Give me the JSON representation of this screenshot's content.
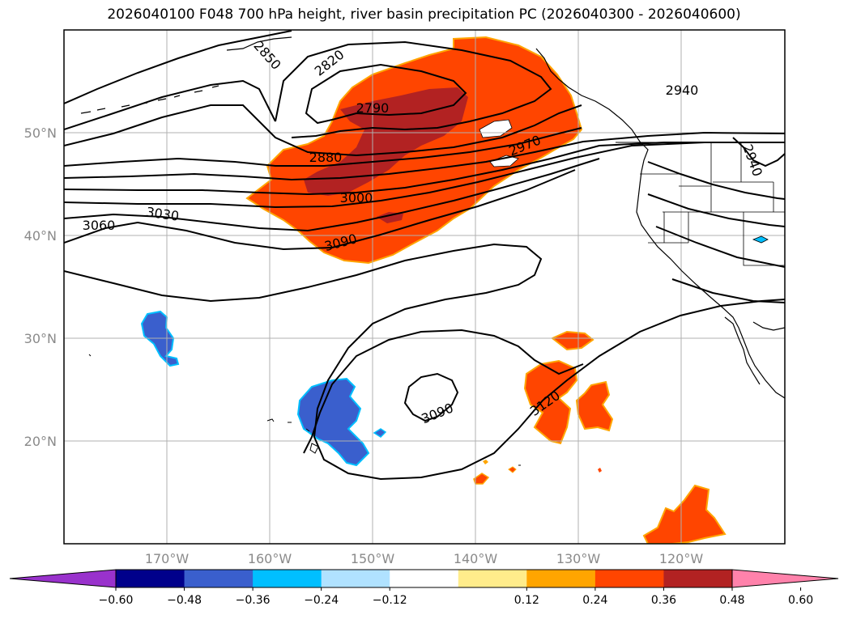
{
  "title": "2026040100 F048 700 hPa height, river basin precipitation PC (2026040300 - 2026040600)",
  "map": {
    "lon_ticks": [
      "170°W",
      "160°W",
      "150°W",
      "140°W",
      "130°W",
      "120°W"
    ],
    "lat_ticks": [
      "50°N",
      "40°N",
      "30°N",
      "20°N"
    ],
    "grid": true,
    "contour_labels": [
      "2850",
      "2820",
      "2790",
      "2880",
      "2970",
      "2940",
      "2940",
      "3000",
      "3030",
      "3060",
      "3090",
      "3090",
      "3120"
    ]
  },
  "colorbar": {
    "ticks": [
      "−0.60",
      "−0.48",
      "−0.36",
      "−0.24",
      "−0.12",
      "0.12",
      "0.24",
      "0.36",
      "0.48",
      "0.60"
    ],
    "colors": [
      "#9932cc",
      "#00008b",
      "#3a5fcd",
      "#00bfff",
      "#b0e2ff",
      "#ffffff",
      "#ffec8b",
      "#ffa500",
      "#ff4500",
      "#b22222",
      "#ff82ab"
    ]
  },
  "palette": {
    "strong_pos": "#b22222",
    "pos": "#ff4500",
    "pos_edge": "#ffa500",
    "neg": "#3a5fcd",
    "neg_edge": "#00bfff"
  }
}
